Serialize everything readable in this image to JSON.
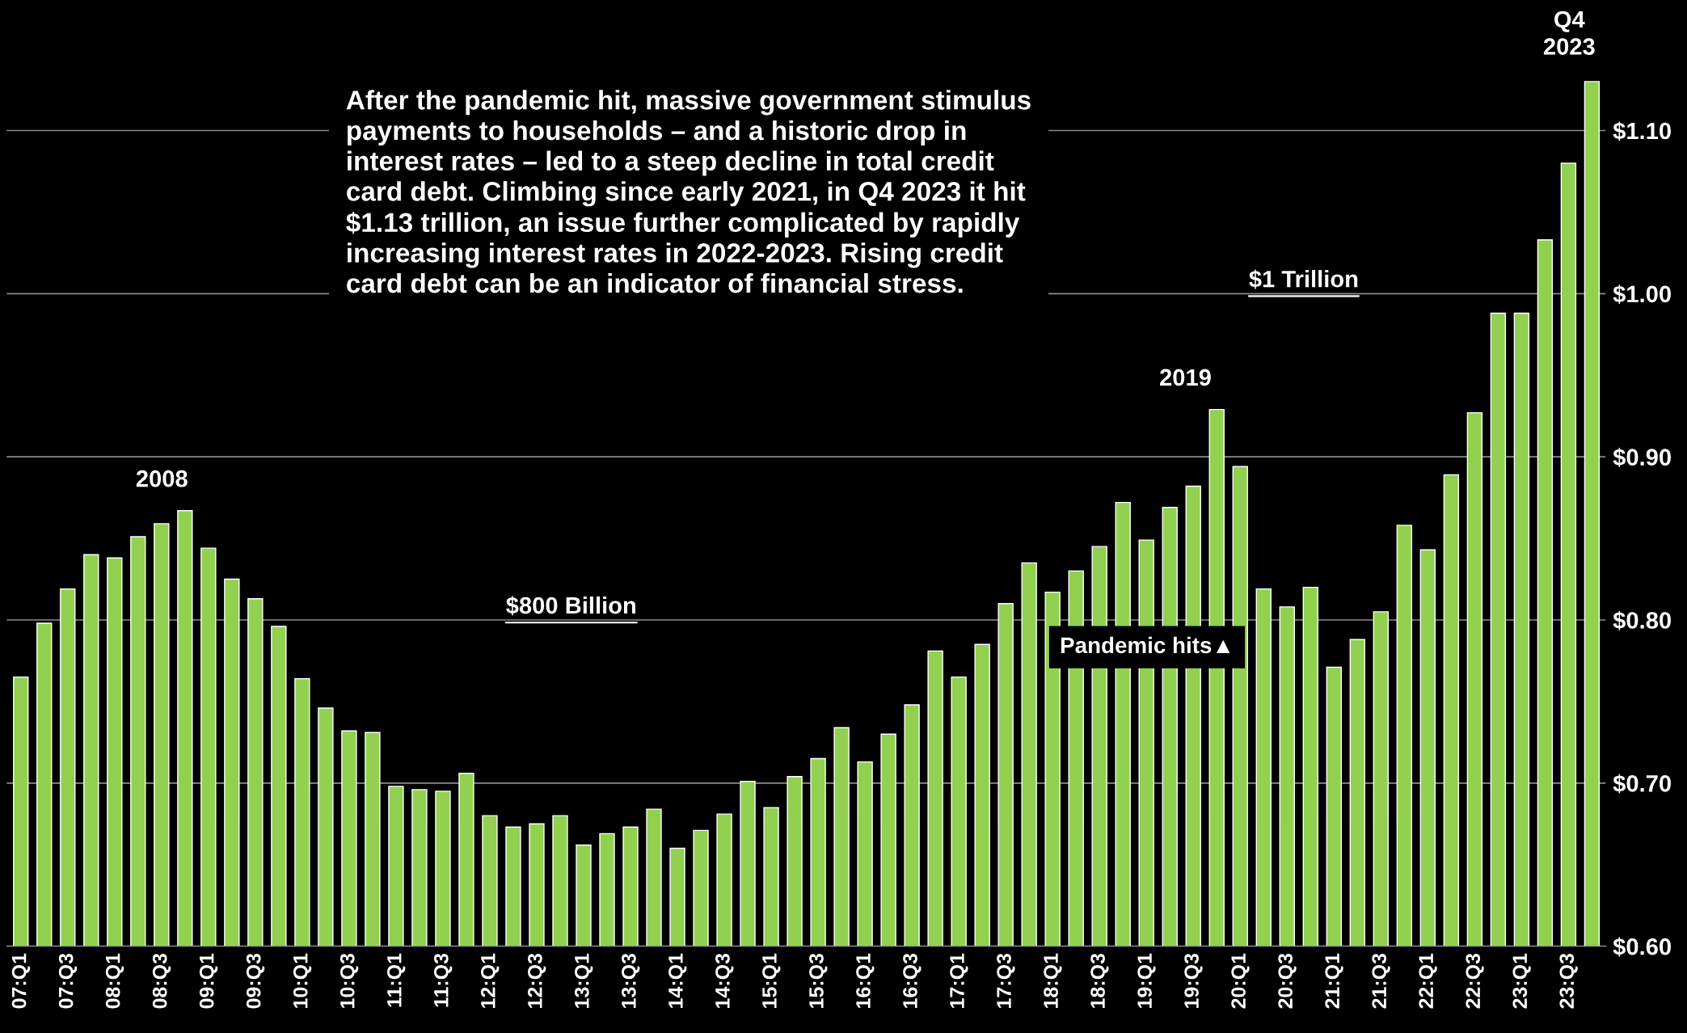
{
  "chart_data": {
    "type": "bar",
    "categories": [
      "07:Q1",
      null,
      "07:Q3",
      null,
      "08:Q1",
      null,
      "08:Q3",
      null,
      "09:Q1",
      null,
      "09:Q3",
      null,
      "10:Q1",
      null,
      "10:Q3",
      null,
      "11:Q1",
      null,
      "11:Q3",
      null,
      "12:Q1",
      null,
      "12:Q3",
      null,
      "13:Q1",
      null,
      "13:Q3",
      null,
      "14:Q1",
      null,
      "14:Q3",
      null,
      "15:Q1",
      null,
      "15:Q3",
      null,
      "16:Q1",
      null,
      "16:Q3",
      null,
      "17:Q1",
      null,
      "17:Q3",
      null,
      "18:Q1",
      null,
      "18:Q3",
      null,
      "19:Q1",
      null,
      "19:Q3",
      null,
      "20:Q1",
      null,
      "20:Q3",
      null,
      "21:Q1",
      null,
      "21:Q3",
      null,
      "22:Q1",
      null,
      "22:Q3",
      null,
      "23:Q1",
      null,
      "23:Q3",
      null
    ],
    "values": [
      0.765,
      0.798,
      0.819,
      0.84,
      0.838,
      0.851,
      0.859,
      0.867,
      0.844,
      0.825,
      0.813,
      0.796,
      0.764,
      0.746,
      0.732,
      0.731,
      0.698,
      0.696,
      0.695,
      0.706,
      0.68,
      0.673,
      0.675,
      0.68,
      0.662,
      0.669,
      0.673,
      0.684,
      0.66,
      0.671,
      0.681,
      0.701,
      0.685,
      0.704,
      0.715,
      0.734,
      0.713,
      0.73,
      0.748,
      0.781,
      0.765,
      0.785,
      0.81,
      0.835,
      0.817,
      0.83,
      0.845,
      0.872,
      0.849,
      0.869,
      0.882,
      0.929,
      0.894,
      0.819,
      0.808,
      0.82,
      0.771,
      0.788,
      0.805,
      0.858,
      0.843,
      0.889,
      0.927,
      0.988,
      0.988,
      1.033,
      1.08,
      1.13
    ],
    "color": "#92d050",
    "ylim": [
      0.6,
      1.18
    ],
    "yticks": [
      {
        "value": 0.6,
        "label": "$0.60"
      },
      {
        "value": 0.7,
        "label": "$0.70"
      },
      {
        "value": 0.8,
        "label": "$0.80"
      },
      {
        "value": 0.9,
        "label": "$0.90"
      },
      {
        "value": 1.0,
        "label": "$1.00"
      },
      {
        "value": 1.1,
        "label": "$1.10"
      }
    ],
    "grid": "y",
    "annotations": [
      "After the pandemic hit, massive government stimulus\npayments to households – and a historic drop in\ninterest rates – led to a steep decline in total credit\ncard debt. Climbing since early 2021, in Q4 2023 it hit\n$1.13 trillion, an issue further complicated by rapidly\nincreasing interest rates in 2022-2023. Rising credit\ncard debt can be an indicator of financial stress.",
      "Pandemic hits▲",
      "$800 Billion",
      "$1 Trillion",
      "2008",
      "2019",
      "Q4\n2023"
    ]
  }
}
